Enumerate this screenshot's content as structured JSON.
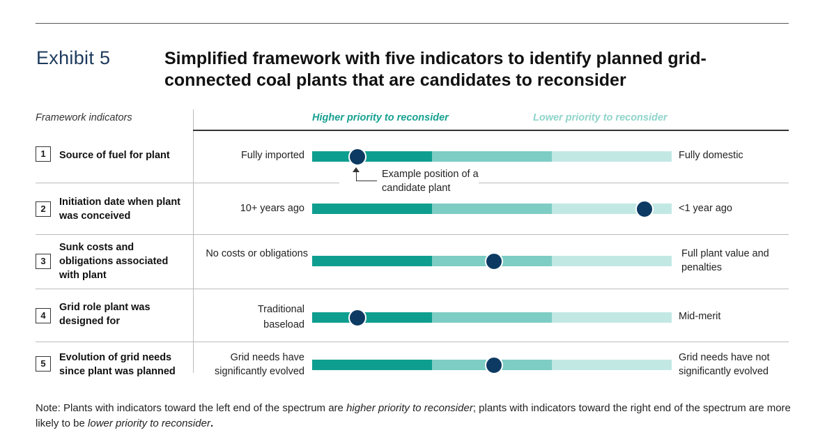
{
  "header": {
    "exhibit_label": "Exhibit 5",
    "title": "Simplified framework with five indicators to identify planned grid-connected coal plants that are candidates to reconsider"
  },
  "columns": {
    "framework_label": "Framework indicators",
    "higher_label": "Higher priority to reconsider",
    "lower_label": "Lower priority to reconsider"
  },
  "colors": {
    "dark_teal": "#0e9e8f",
    "mid_teal": "#7dcdc4",
    "light_teal": "#c2e8e4",
    "marker": "#0d3a62"
  },
  "rows": [
    {
      "number": "1",
      "indicator": "Source of fuel for plant",
      "left": "Fully imported",
      "right": "Fully domestic",
      "position": 0.125
    },
    {
      "number": "2",
      "indicator": "Initiation date when plant was conceived",
      "left": "10+ years ago",
      "right": "<1 year ago",
      "position": 0.925
    },
    {
      "number": "3",
      "indicator": "Sunk costs and obligations associated with plant",
      "left": "No costs or obligations",
      "right": "Full plant value and penalties",
      "position": 0.505
    },
    {
      "number": "4",
      "indicator": "Grid role plant was designed for",
      "left": "Traditional baseload",
      "right": "Mid-merit",
      "position": 0.125
    },
    {
      "number": "5",
      "indicator": "Evolution of grid needs since plant was planned",
      "left": "Grid needs have significantly evolved",
      "right": "Grid needs have not significantly evolved",
      "position": 0.505
    }
  ],
  "annotation": "Example position of a candidate plant",
  "note": {
    "p1": "Note: Plants with indicators toward the left end of the spectrum are ",
    "e1": "higher priority to reconsider",
    "p2": "; plants with indicators toward the right end of the spectrum are more likely to be ",
    "e2": "lower priority to reconsider",
    "p3": "."
  }
}
